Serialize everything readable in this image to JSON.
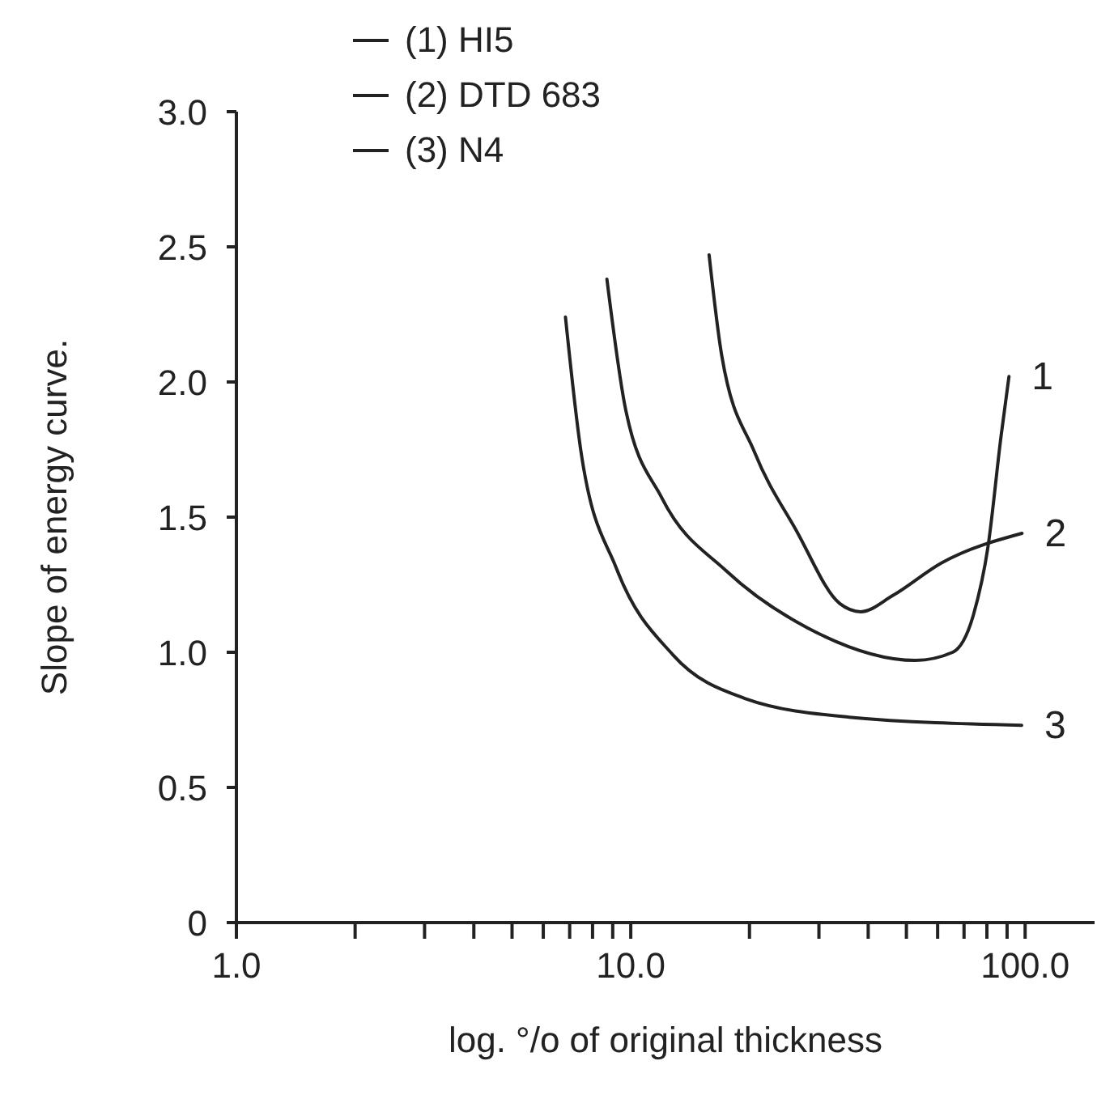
{
  "chart_data": {
    "type": "line",
    "xlabel": "log. °/o of original thickness",
    "ylabel": "Slope of energy curve.",
    "log": "x",
    "xlim": [
      1,
      150
    ],
    "xticks": [
      {
        "value": 1,
        "label": "1.0"
      },
      {
        "value": 2,
        "label": null
      },
      {
        "value": 3,
        "label": null
      },
      {
        "value": 4,
        "label": null
      },
      {
        "value": 5,
        "label": null
      },
      {
        "value": 6,
        "label": null
      },
      {
        "value": 7,
        "label": null
      },
      {
        "value": 8,
        "label": null
      },
      {
        "value": 9,
        "label": null
      },
      {
        "value": 10,
        "label": "10.0"
      },
      {
        "value": 20,
        "label": null
      },
      {
        "value": 30,
        "label": null
      },
      {
        "value": 40,
        "label": null
      },
      {
        "value": 50,
        "label": null
      },
      {
        "value": 60,
        "label": null
      },
      {
        "value": 70,
        "label": null
      },
      {
        "value": 80,
        "label": null
      },
      {
        "value": 90,
        "label": null
      },
      {
        "value": 100,
        "label": "100.0"
      }
    ],
    "ylim": [
      0,
      3.0
    ],
    "yticks": [
      0,
      0.5,
      {
        "value": 1.0,
        "label": "1.0"
      },
      1.5,
      {
        "value": 2.0,
        "label": "2.0"
      },
      2.5,
      {
        "value": 3.0,
        "label": "3.0"
      }
    ],
    "grid": false,
    "legend": "top",
    "marker": "none",
    "line_style": "solid",
    "series": [
      {
        "name": "(1) HI5",
        "color": "#222222",
        "x": [
          8.7,
          9.7,
          12.0,
          17.5,
          28.1,
          52.7,
          65.5,
          74,
          80.5,
          86.9,
          91
        ],
        "values": [
          2.38,
          1.9,
          1.57,
          1.3,
          1.09,
          0.97,
          1.0,
          1.14,
          1.39,
          1.8,
          2.02
        ]
      },
      {
        "name": "(2) DTD 683",
        "color": "#222222",
        "x": [
          15.8,
          17.0,
          20.6,
          26.3,
          33.9,
          38.3,
          46.2,
          61.3,
          98.2
        ],
        "values": [
          2.47,
          2.1,
          1.74,
          1.45,
          1.18,
          1.15,
          1.21,
          1.33,
          1.44
        ]
      },
      {
        "name": "(3) N4",
        "color": "#222222",
        "x": [
          6.83,
          7.5,
          9.2,
          12.8,
          19.4,
          35.8,
          98
        ],
        "values": [
          2.24,
          1.73,
          1.31,
          0.99,
          0.83,
          0.76,
          0.73
        ]
      }
    ],
    "annotations": [
      {
        "text": "1",
        "x": 91,
        "y": 2.02
      },
      {
        "text": "2",
        "x": 98.2,
        "y": 1.44
      },
      {
        "text": "3",
        "x": 98,
        "y": 0.73
      }
    ]
  }
}
